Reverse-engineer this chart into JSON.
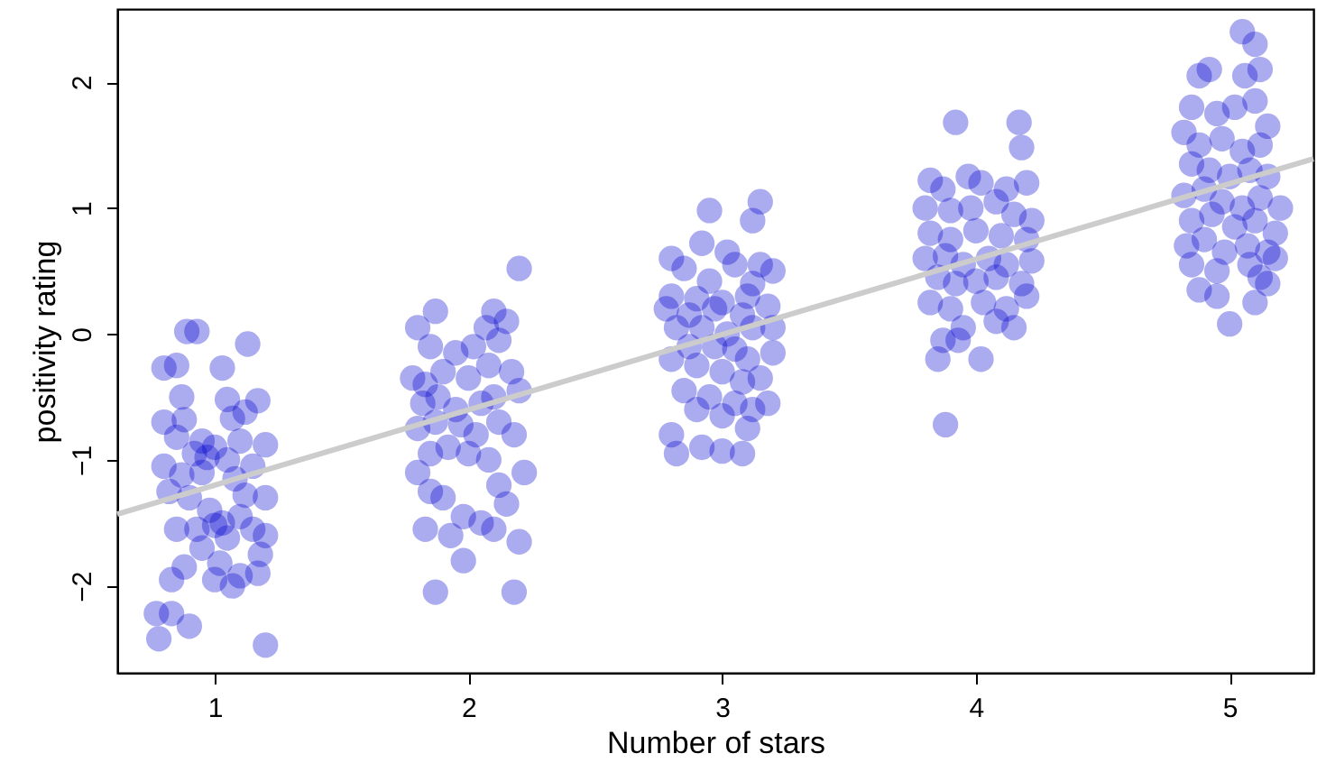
{
  "chart_data": {
    "type": "scatter",
    "xlabel": "Number of stars",
    "ylabel": "positivity rating",
    "xlim": [
      0.616,
      5.33
    ],
    "ylim": [
      -2.69,
      2.58
    ],
    "xticks": [
      1,
      2,
      3,
      4,
      5
    ],
    "yticks": [
      -2,
      -1,
      0,
      1,
      2
    ],
    "grid": false,
    "marker": "circle",
    "series": [
      {
        "color": "#0000cd",
        "x": [
          0.89,
          0.93,
          1.13,
          0.8,
          0.85,
          1.03,
          0.87,
          1.05,
          1.17,
          0.8,
          0.88,
          1.07,
          1.12,
          0.85,
          0.95,
          1.0,
          1.1,
          1.2,
          0.92,
          0.97,
          1.05,
          0.8,
          0.87,
          0.95,
          1.08,
          1.15,
          0.82,
          0.9,
          1.12,
          1.2,
          0.98,
          1.03,
          1.1,
          0.85,
          0.93,
          1.0,
          1.15,
          1.2,
          1.05,
          1.18,
          0.95,
          1.02,
          0.88,
          1.0,
          1.1,
          1.17,
          0.83,
          1.07,
          0.77,
          0.83,
          0.9,
          0.78,
          1.2,
          1.8,
          1.85,
          2.07,
          2.15,
          2.2,
          1.87,
          2.1,
          1.95,
          2.02,
          2.12,
          1.78,
          1.83,
          1.9,
          2.0,
          2.08,
          2.17,
          1.82,
          1.88,
          1.95,
          2.05,
          2.1,
          2.2,
          1.8,
          1.87,
          1.97,
          2.03,
          2.12,
          2.18,
          1.85,
          1.92,
          2.0,
          2.08,
          2.22,
          1.8,
          1.85,
          1.9,
          2.12,
          1.98,
          2.05,
          2.15,
          1.93,
          2.1,
          2.2,
          1.83,
          1.98,
          1.87,
          2.18,
          2.95,
          3.15,
          3.12,
          2.92,
          3.02,
          2.8,
          2.85,
          3.05,
          3.15,
          3.2,
          2.95,
          3.12,
          2.8,
          2.9,
          3.0,
          3.1,
          3.18,
          2.78,
          2.87,
          2.97,
          3.08,
          2.82,
          2.92,
          3.02,
          3.12,
          3.2,
          2.87,
          2.97,
          3.05,
          3.1,
          3.2,
          2.8,
          2.9,
          3.0,
          3.08,
          3.15,
          2.85,
          2.95,
          3.05,
          3.12,
          3.18,
          2.9,
          3.0,
          2.8,
          3.1,
          2.82,
          2.92,
          3.0,
          3.08,
          3.92,
          4.17,
          4.18,
          3.82,
          3.87,
          3.97,
          4.02,
          4.12,
          4.2,
          3.8,
          3.9,
          3.98,
          4.08,
          4.15,
          4.22,
          3.82,
          3.9,
          4.0,
          4.1,
          4.2,
          3.8,
          3.88,
          3.95,
          4.05,
          4.12,
          4.22,
          3.85,
          3.92,
          4.0,
          4.08,
          4.18,
          3.82,
          3.9,
          4.03,
          4.12,
          4.2,
          3.95,
          4.08,
          4.15,
          3.87,
          3.93,
          3.85,
          4.02,
          3.88,
          5.05,
          5.1,
          4.88,
          4.92,
          5.06,
          5.12,
          4.85,
          4.95,
          5.02,
          5.1,
          5.15,
          4.82,
          4.88,
          4.97,
          5.05,
          5.12,
          4.85,
          4.92,
          5.0,
          5.08,
          5.15,
          4.82,
          4.9,
          4.97,
          5.05,
          5.12,
          5.2,
          4.85,
          4.93,
          5.02,
          5.1,
          5.18,
          4.83,
          4.9,
          4.98,
          5.07,
          5.15,
          4.85,
          4.95,
          5.08,
          5.18,
          4.88,
          4.95,
          5.12,
          5.15,
          5.0,
          5.1
        ],
        "values": [
          0.02,
          0.02,
          -0.08,
          -0.27,
          -0.25,
          -0.27,
          -0.5,
          -0.52,
          -0.53,
          -0.7,
          -0.68,
          -0.67,
          -0.62,
          -0.82,
          -0.85,
          -0.9,
          -0.85,
          -0.88,
          -0.95,
          -0.98,
          -1.0,
          -1.05,
          -1.12,
          -1.1,
          -1.15,
          -1.05,
          -1.25,
          -1.3,
          -1.28,
          -1.3,
          -1.4,
          -1.5,
          -1.45,
          -1.55,
          -1.55,
          -1.52,
          -1.55,
          -1.6,
          -1.62,
          -1.75,
          -1.7,
          -1.82,
          -1.85,
          -1.95,
          -1.92,
          -1.9,
          -1.95,
          -2.0,
          -2.22,
          -2.22,
          -2.32,
          -2.42,
          -2.47,
          0.05,
          -0.1,
          0.05,
          0.1,
          0.52,
          0.18,
          0.18,
          -0.15,
          -0.1,
          -0.05,
          -0.35,
          -0.4,
          -0.3,
          -0.35,
          -0.25,
          -0.3,
          -0.55,
          -0.5,
          -0.6,
          -0.55,
          -0.5,
          -0.45,
          -0.75,
          -0.7,
          -0.72,
          -0.8,
          -0.7,
          -0.8,
          -0.95,
          -0.9,
          -0.95,
          -1.0,
          -1.1,
          -1.1,
          -1.25,
          -1.3,
          -1.2,
          -1.45,
          -1.5,
          -1.35,
          -1.6,
          -1.55,
          -1.65,
          -1.55,
          -1.8,
          -2.05,
          -2.05,
          0.98,
          1.05,
          0.9,
          0.72,
          0.65,
          0.6,
          0.52,
          0.55,
          0.55,
          0.5,
          0.42,
          0.4,
          0.3,
          0.28,
          0.25,
          0.3,
          0.22,
          0.2,
          0.15,
          0.2,
          0.15,
          0.05,
          0.05,
          0.0,
          0.05,
          0.05,
          -0.1,
          -0.1,
          -0.12,
          -0.2,
          -0.15,
          -0.2,
          -0.25,
          -0.3,
          -0.38,
          -0.35,
          -0.45,
          -0.5,
          -0.55,
          -0.6,
          -0.55,
          -0.6,
          -0.65,
          -0.8,
          -0.75,
          -0.95,
          -0.9,
          -0.93,
          -0.95,
          1.68,
          1.68,
          1.48,
          1.22,
          1.15,
          1.25,
          1.2,
          1.15,
          1.2,
          1.0,
          0.98,
          1.0,
          1.05,
          0.95,
          0.9,
          0.8,
          0.75,
          0.82,
          0.78,
          0.75,
          0.6,
          0.62,
          0.55,
          0.6,
          0.55,
          0.58,
          0.45,
          0.4,
          0.42,
          0.45,
          0.4,
          0.25,
          0.2,
          0.25,
          0.2,
          0.3,
          0.05,
          0.1,
          0.05,
          -0.05,
          -0.05,
          -0.2,
          -0.2,
          -0.72,
          2.4,
          2.3,
          2.05,
          2.1,
          2.05,
          2.1,
          1.8,
          1.75,
          1.8,
          1.85,
          1.65,
          1.6,
          1.5,
          1.55,
          1.45,
          1.5,
          1.35,
          1.3,
          1.25,
          1.3,
          1.25,
          1.1,
          1.15,
          1.05,
          1.0,
          1.08,
          1.0,
          0.9,
          0.95,
          0.85,
          0.9,
          0.8,
          0.7,
          0.75,
          0.65,
          0.7,
          0.65,
          0.55,
          0.5,
          0.55,
          0.6,
          0.35,
          0.3,
          0.45,
          0.4,
          0.08,
          0.25
        ]
      },
      {
        "type": "line",
        "color": "#cccccc",
        "x": [
          0.616,
          5.33
        ],
        "values": [
          -1.43,
          1.39
        ],
        "marker": "none",
        "line_style": "solid"
      }
    ]
  }
}
